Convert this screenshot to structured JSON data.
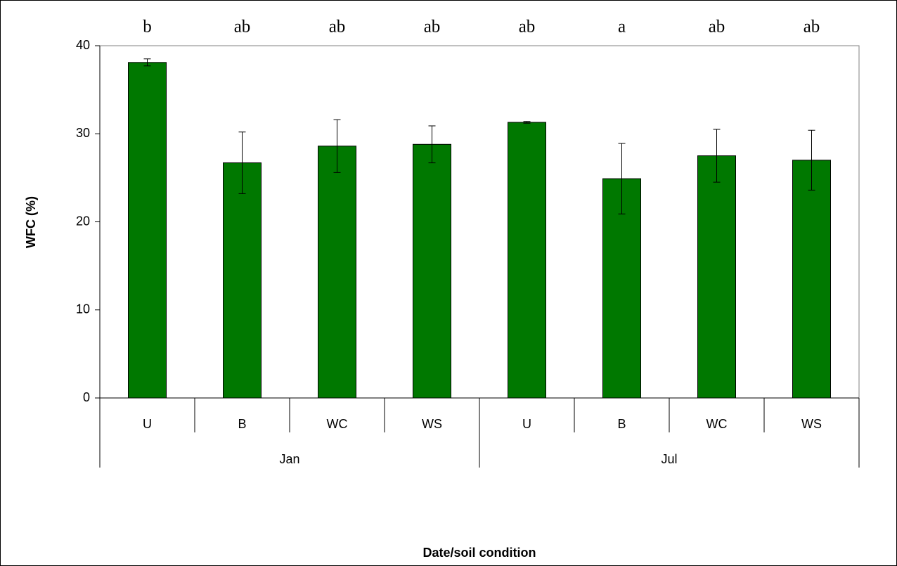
{
  "chart_data": {
    "type": "bar",
    "y_label": "WFC (%)",
    "x_label": "Date/soil condition",
    "categories": [
      "U",
      "B",
      "WC",
      "WS",
      "U",
      "B",
      "WC",
      "WS"
    ],
    "groups": [
      "Jan",
      "Jul"
    ],
    "values": [
      38.1,
      26.7,
      28.6,
      28.8,
      31.3,
      24.9,
      27.5,
      27.0
    ],
    "errors": [
      0.4,
      3.5,
      3.0,
      2.1,
      0.1,
      4.0,
      3.0,
      3.4
    ],
    "significance_labels": [
      "b",
      "ab",
      "ab",
      "ab",
      "ab",
      "a",
      "ab",
      "ab"
    ],
    "color": "#007800",
    "ylim": [
      0,
      40
    ],
    "yticks": [
      0,
      10,
      20,
      30,
      40
    ]
  }
}
